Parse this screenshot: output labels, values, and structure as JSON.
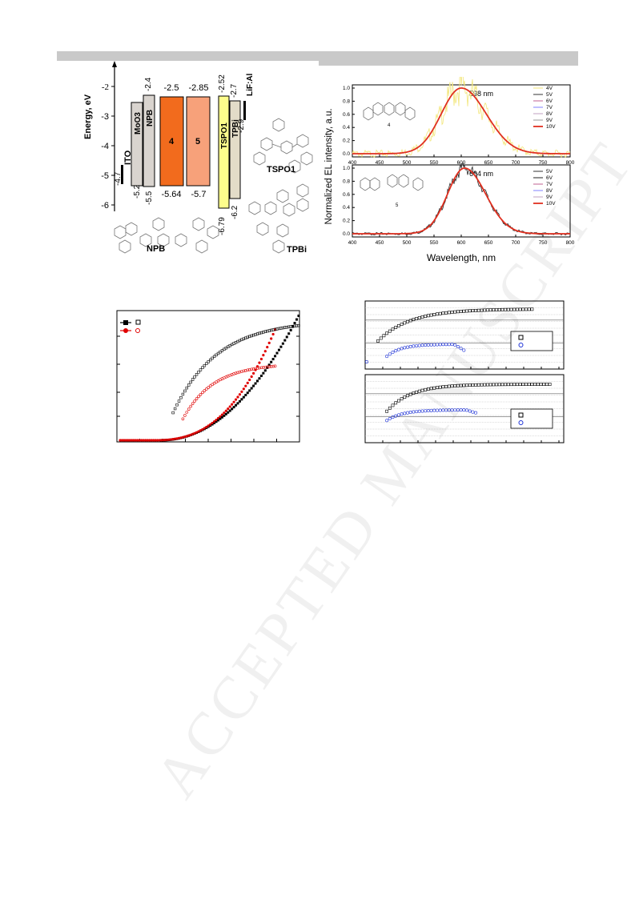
{
  "watermark": "ACCEPTED MANUSCRIPT",
  "energy_diagram": {
    "ylabel": "Energy, eV",
    "yticks": [
      -2,
      -3,
      -4,
      -5,
      -6
    ],
    "ito": {
      "label": "ITO",
      "level": "-4.7"
    },
    "layers": [
      {
        "label": "MoO3",
        "lumo": "",
        "homo": "-5.2",
        "fill": "#d9d4cf"
      },
      {
        "label": "NPB",
        "lumo": "-2.4",
        "homo": "-5.5",
        "fill": "#d9d4cf"
      },
      {
        "label": "4",
        "lumo": "-2.5",
        "homo": "-5.64",
        "fill": "#f26b1d"
      },
      {
        "label": "5",
        "lumo": "-2.85",
        "homo": "-5.7",
        "fill": "#f7a17a"
      },
      {
        "label": "TSPO1",
        "lumo": "-2.52",
        "homo": "-6.79",
        "fill": "#fdfd8c"
      },
      {
        "label": "TPBi",
        "lumo": "-2.7",
        "homo": "-6.2",
        "fill": "#e3dcc8"
      }
    ],
    "cathode": {
      "label": "LiF:Al",
      "level": "-2.9"
    },
    "molecules": [
      "NPB",
      "TSPO1",
      "TPBi"
    ]
  },
  "el_spectra": {
    "ylabel": "Normalized EL intensity, a.u.",
    "xlabel": "Wavelength, nm",
    "panels": [
      {
        "peak": "598 nm",
        "compound": "4",
        "legend": [
          "4V",
          "5V",
          "6V",
          "7V",
          "8V",
          "9V",
          "10V"
        ],
        "legend_colors": [
          "#f2e67a",
          "#333333",
          "#c06090",
          "#8080ff",
          "#c0a0c0",
          "#999999",
          "#e03020"
        ]
      },
      {
        "peak": "604 nm",
        "compound": "5",
        "legend": [
          "5V",
          "6V",
          "7V",
          "8V",
          "9V",
          "10V"
        ],
        "legend_colors": [
          "#333333",
          "#222222",
          "#c06090",
          "#8080ff",
          "#c0a0c0",
          "#e03020"
        ]
      }
    ],
    "xticks": [
      "400",
      "450",
      "500",
      "550",
      "600",
      "650",
      "700",
      "750",
      "800"
    ],
    "yticks": [
      "0.0",
      "0.2",
      "0.4",
      "0.6",
      "0.8",
      "1.0"
    ]
  },
  "colors": {
    "black_series": "#000000",
    "red_series": "#e00000",
    "blue_series": "#1a2fd6"
  }
}
